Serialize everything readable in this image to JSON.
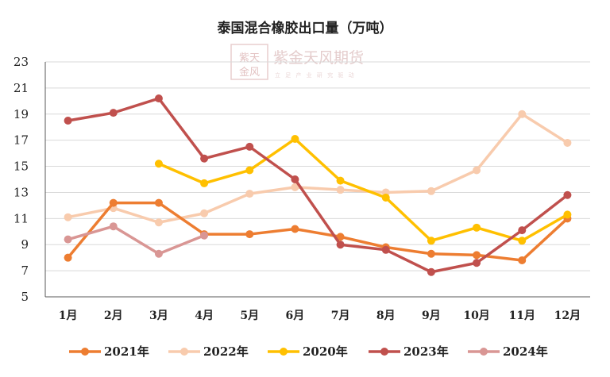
{
  "watermark": {
    "logo_text": "紫金天风",
    "name": "紫金天风期货",
    "slogan": "立 足 产 业 研 究 驱 动"
  },
  "chart_data": {
    "type": "line",
    "title": "泰国混合橡胶出口量（万吨）",
    "categories": [
      "1月",
      "2月",
      "3月",
      "4月",
      "5月",
      "6月",
      "7月",
      "8月",
      "9月",
      "10月",
      "11月",
      "12月"
    ],
    "ylim": [
      5,
      23
    ],
    "yticks": [
      5,
      7,
      9,
      11,
      13,
      15,
      17,
      19,
      21,
      23
    ],
    "grid": "horizontal",
    "legend_position": "bottom",
    "series": [
      {
        "name": "2021年",
        "color": "#ed7d31",
        "values": [
          8.0,
          12.2,
          12.2,
          9.8,
          9.8,
          10.2,
          9.6,
          8.8,
          8.3,
          8.2,
          7.8,
          11.0
        ]
      },
      {
        "name": "2022年",
        "color": "#f8cbad",
        "values": [
          11.1,
          11.8,
          10.7,
          11.4,
          12.9,
          13.4,
          13.2,
          13.0,
          13.1,
          14.7,
          19.0,
          16.8
        ]
      },
      {
        "name": "2020年",
        "color": "#ffc000",
        "values": [
          null,
          null,
          15.2,
          13.7,
          14.7,
          17.1,
          13.9,
          12.6,
          9.3,
          10.3,
          9.3,
          11.3
        ]
      },
      {
        "name": "2023年",
        "color": "#c0504d",
        "values": [
          18.5,
          19.1,
          20.2,
          15.6,
          16.5,
          14.0,
          9.0,
          8.6,
          6.9,
          7.6,
          10.1,
          12.8
        ]
      },
      {
        "name": "2024年",
        "color": "#d99694",
        "values": [
          9.4,
          10.4,
          8.3,
          9.7,
          null,
          null,
          null,
          null,
          null,
          null,
          null,
          null
        ]
      }
    ]
  }
}
